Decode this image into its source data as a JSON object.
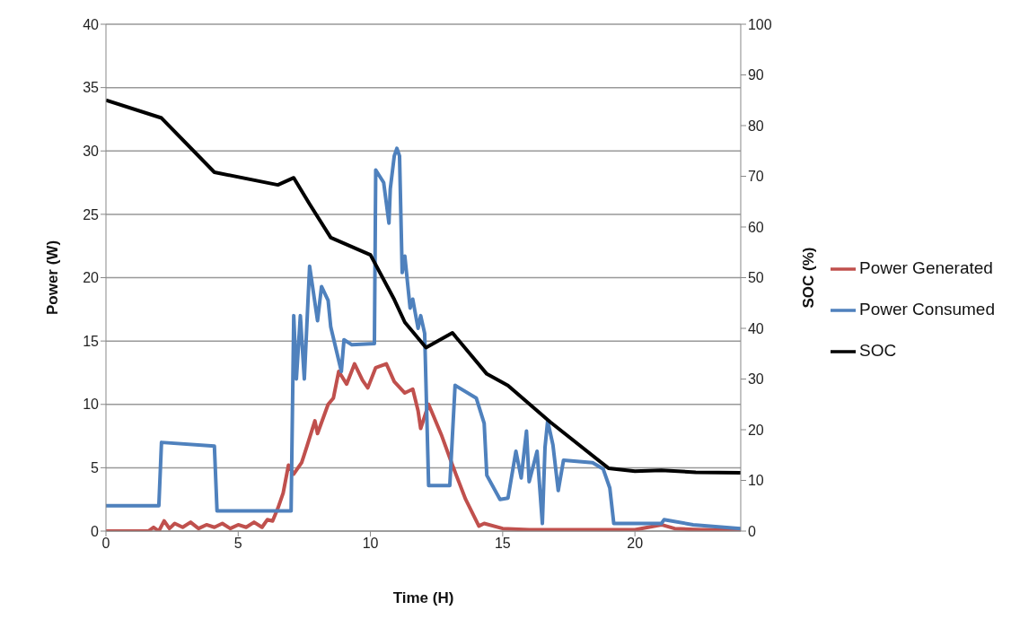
{
  "chart_data": {
    "type": "line",
    "xlabel": "Time (H)",
    "ylabel": "Power (W)",
    "y2label": "SOC (%)",
    "xlim": [
      0,
      24
    ],
    "xticks": [
      0,
      5,
      10,
      15,
      20
    ],
    "ylim": [
      0,
      40
    ],
    "yticks": [
      0,
      5,
      10,
      15,
      20,
      25,
      30,
      35,
      40
    ],
    "y2lim": [
      0,
      100
    ],
    "y2ticks": [
      0,
      10,
      20,
      30,
      40,
      50,
      60,
      70,
      80,
      90,
      100
    ],
    "grid": "y",
    "legend": "right",
    "marker": "none",
    "line_style": "solid",
    "series": [
      {
        "name": "Power Generated",
        "color": "#c0504d",
        "x": [
          0,
          1.6,
          1.8,
          2.0,
          2.2,
          2.4,
          2.6,
          2.9,
          3.2,
          3.5,
          3.8,
          4.1,
          4.4,
          4.7,
          5.0,
          5.3,
          5.6,
          5.9,
          6.1,
          6.3,
          6.5,
          6.7,
          6.9,
          7.1,
          7.4,
          7.6,
          7.9,
          8.0,
          8.4,
          8.6,
          8.8,
          9.1,
          9.4,
          9.7,
          9.9,
          10.2,
          10.6,
          10.9,
          11.3,
          11.6,
          11.8,
          11.9,
          12.2,
          12.3,
          12.7,
          13.1,
          13.6,
          14.1,
          14.3,
          15.0,
          16.0,
          18.0,
          20.0,
          20.5,
          21.0,
          21.5,
          22.5,
          24.0
        ],
        "values": [
          0,
          0,
          0.3,
          0,
          0.8,
          0.2,
          0.6,
          0.3,
          0.7,
          0.2,
          0.5,
          0.3,
          0.6,
          0.2,
          0.5,
          0.3,
          0.7,
          0.3,
          0.9,
          0.8,
          1.8,
          3.0,
          5.2,
          4.5,
          5.4,
          6.7,
          8.7,
          7.7,
          10.0,
          10.5,
          12.6,
          11.6,
          13.2,
          11.9,
          11.3,
          12.9,
          13.2,
          11.8,
          10.9,
          11.2,
          9.5,
          8.1,
          10.0,
          9.5,
          7.5,
          5.2,
          2.5,
          0.4,
          0.6,
          0.2,
          0.1,
          0.1,
          0.1,
          0.3,
          0.5,
          0.2,
          0.1,
          0.1
        ]
      },
      {
        "name": "Power Consumed",
        "color": "#4f81bd",
        "x": [
          0,
          2.0,
          2.1,
          4.1,
          4.2,
          7.0,
          7.1,
          7.2,
          7.35,
          7.5,
          7.7,
          8.0,
          8.15,
          8.4,
          8.5,
          8.9,
          9.0,
          9.3,
          10.15,
          10.2,
          10.5,
          10.7,
          10.75,
          10.9,
          11.0,
          11.1,
          11.2,
          11.3,
          11.5,
          11.6,
          11.8,
          11.9,
          12.05,
          12.2,
          13.0,
          13.2,
          14.0,
          14.3,
          14.4,
          14.9,
          15.2,
          15.5,
          15.7,
          15.9,
          16.0,
          16.3,
          16.5,
          16.6,
          16.7,
          16.9,
          17.1,
          17.3,
          18.4,
          18.8,
          19.05,
          19.2,
          21.0,
          21.1,
          22.2,
          24.0
        ],
        "values": [
          2.0,
          2.0,
          7.0,
          6.7,
          1.6,
          1.6,
          17.0,
          12.0,
          17.0,
          12.0,
          20.9,
          16.6,
          19.3,
          18.2,
          16.1,
          12.6,
          15.1,
          14.7,
          14.8,
          28.5,
          27.5,
          24.3,
          27.0,
          29.6,
          30.2,
          29.6,
          20.4,
          21.7,
          17.6,
          18.3,
          16.0,
          17.0,
          15.6,
          3.6,
          3.6,
          11.5,
          10.5,
          8.5,
          4.4,
          2.5,
          2.6,
          6.3,
          4.2,
          7.9,
          3.9,
          6.3,
          0.6,
          6.6,
          8.7,
          6.8,
          3.2,
          5.6,
          5.4,
          4.9,
          3.4,
          0.6,
          0.6,
          0.9,
          0.5,
          0.2
        ]
      },
      {
        "name": "SOC",
        "color": "#000000",
        "axis": "y2",
        "x": [
          0,
          2.1,
          4.1,
          6.5,
          7.1,
          7.7,
          8.5,
          10.0,
          10.9,
          11.3,
          12.1,
          13.1,
          14.4,
          15.2,
          16.8,
          19.0,
          20.0,
          21.0,
          22.3,
          24.0
        ],
        "values": [
          85,
          81.5,
          70.8,
          68.3,
          69.7,
          64.5,
          57.9,
          54.5,
          45.7,
          41.2,
          36.2,
          39.1,
          31,
          28.7,
          21.5,
          12.4,
          11.8,
          12,
          11.6,
          11.5
        ]
      }
    ]
  }
}
